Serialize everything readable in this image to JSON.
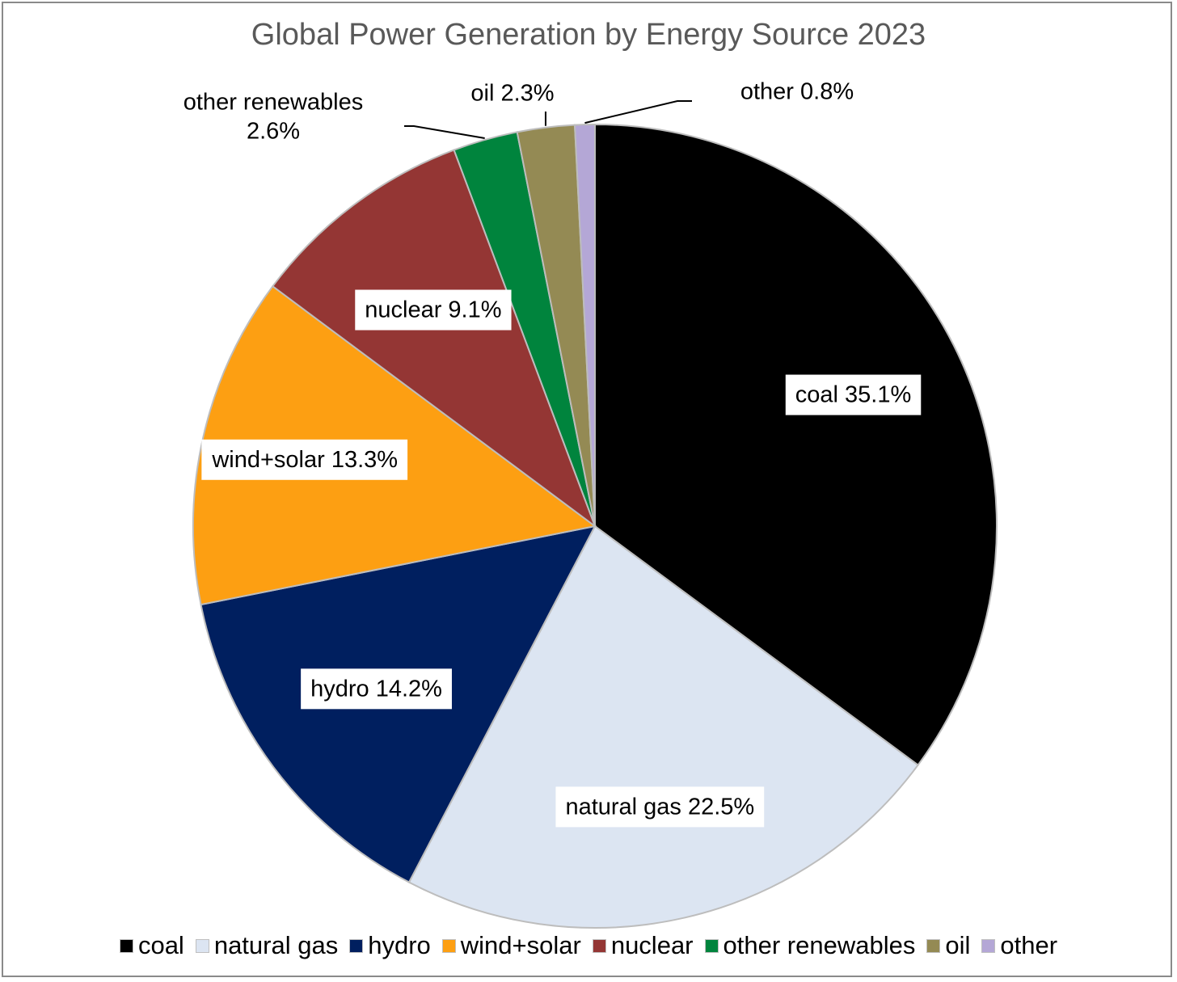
{
  "chart_data": {
    "type": "pie",
    "title": "Global Power Generation by Energy Source 2023",
    "slices": [
      {
        "name": "coal",
        "value": 35.1,
        "label": "coal 35.1%",
        "color": "#000000"
      },
      {
        "name": "natural gas",
        "value": 22.5,
        "label": "natural gas 22.5%",
        "color": "#DCE5F2"
      },
      {
        "name": "hydro",
        "value": 14.2,
        "label": "hydro 14.2%",
        "color": "#001F5F"
      },
      {
        "name": "wind+solar",
        "value": 13.3,
        "label": "wind+solar 13.3%",
        "color": "#FD9F12"
      },
      {
        "name": "nuclear",
        "value": 9.1,
        "label": "nuclear 9.1%",
        "color": "#943634"
      },
      {
        "name": "other renewables",
        "value": 2.6,
        "label": "other renewables 2.6%",
        "color": "#00843D"
      },
      {
        "name": "oil",
        "value": 2.3,
        "label": "oil 2.3%",
        "color": "#948A54"
      },
      {
        "name": "other",
        "value": 0.8,
        "label": "other 0.8%",
        "color": "#B4A7D6"
      }
    ],
    "legend_position": "bottom"
  }
}
